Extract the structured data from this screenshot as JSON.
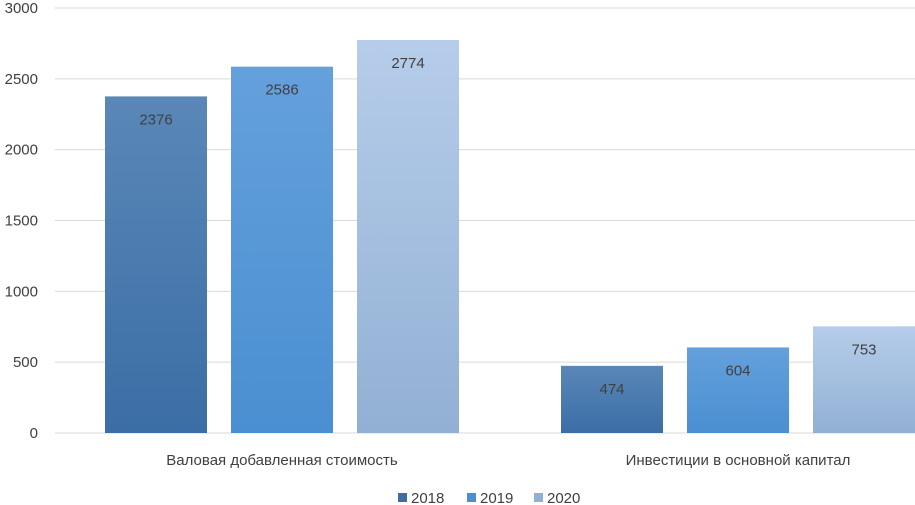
{
  "chart_data": {
    "type": "bar",
    "categories": [
      "Валовая добавленная стоимость",
      "Инвестиции в основной капитал"
    ],
    "series": [
      {
        "name": "2018",
        "values": [
          2376,
          474
        ],
        "color_top": "#5a87b8",
        "color_bottom": "#3b6ea5"
      },
      {
        "name": "2019",
        "values": [
          2586,
          604
        ],
        "color_top": "#64a0dc",
        "color_bottom": "#4a8fd1"
      },
      {
        "name": "2020",
        "values": [
          2774,
          753
        ],
        "color_top": "#b6cdea",
        "color_bottom": "#92b0d4"
      }
    ],
    "yticks": [
      0,
      500,
      1000,
      1500,
      2000,
      2500,
      3000
    ],
    "ylim": [
      0,
      3000
    ],
    "grid": true,
    "legend_position": "bottom-center",
    "title": "",
    "xlabel": "",
    "ylabel": ""
  }
}
